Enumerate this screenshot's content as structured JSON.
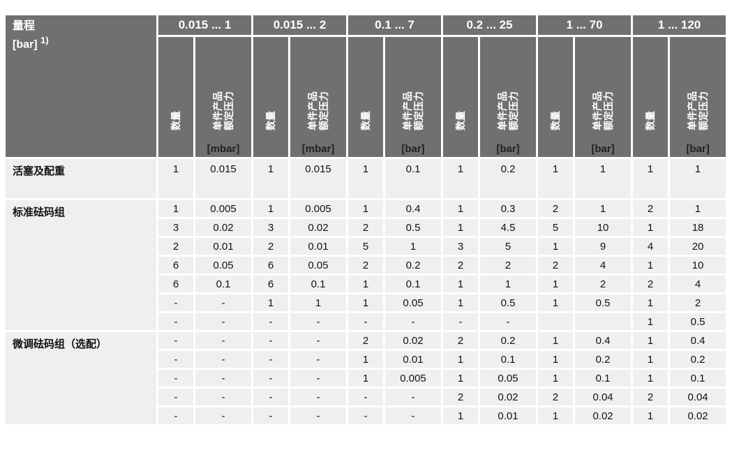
{
  "header": {
    "title": "量程",
    "unit": "[bar]",
    "footnote": "1)",
    "count_label": "数量",
    "value_label": "单件产品\n额定压力",
    "ranges": [
      {
        "label": "0.015 ... 1",
        "unit": "[mbar]"
      },
      {
        "label": "0.015 ... 2",
        "unit": "[mbar]"
      },
      {
        "label": "0.1 ... 7",
        "unit": "[bar]"
      },
      {
        "label": "0.2 ... 25",
        "unit": "[bar]"
      },
      {
        "label": "1 ... 70",
        "unit": "[bar]"
      },
      {
        "label": "1 ... 120",
        "unit": "[bar]"
      }
    ]
  },
  "groups": [
    {
      "label": "活塞及配重",
      "rows": [
        [
          "1",
          "0.015",
          "1",
          "0.015",
          "1",
          "0.1",
          "1",
          "0.2",
          "1",
          "1",
          "1",
          "1"
        ]
      ]
    },
    {
      "label": "标准砝码组",
      "rows": [
        [
          "1",
          "0.005",
          "1",
          "0.005",
          "1",
          "0.4",
          "1",
          "0.3",
          "2",
          "1",
          "2",
          "1"
        ],
        [
          "3",
          "0.02",
          "3",
          "0.02",
          "2",
          "0.5",
          "1",
          "4.5",
          "5",
          "10",
          "1",
          "18"
        ],
        [
          "2",
          "0.01",
          "2",
          "0.01",
          "5",
          "1",
          "3",
          "5",
          "1",
          "9",
          "4",
          "20"
        ],
        [
          "6",
          "0.05",
          "6",
          "0.05",
          "2",
          "0.2",
          "2",
          "2",
          "2",
          "4",
          "1",
          "10"
        ],
        [
          "6",
          "0.1",
          "6",
          "0.1",
          "1",
          "0.1",
          "1",
          "1",
          "1",
          "2",
          "2",
          "4"
        ],
        [
          "-",
          "-",
          "1",
          "1",
          "1",
          "0.05",
          "1",
          "0.5",
          "1",
          "0.5",
          "1",
          "2"
        ],
        [
          "-",
          "-",
          "-",
          "-",
          "-",
          "-",
          "-",
          "-",
          "",
          "",
          "1",
          "0.5"
        ]
      ]
    },
    {
      "label": "微调砝码组（选配）",
      "rows": [
        [
          "-",
          "-",
          "-",
          "-",
          "2",
          "0.02",
          "2",
          "0.2",
          "1",
          "0.4",
          "1",
          "0.4"
        ],
        [
          "-",
          "-",
          "-",
          "-",
          "1",
          "0.01",
          "1",
          "0.1",
          "1",
          "0.2",
          "1",
          "0.2"
        ],
        [
          "-",
          "-",
          "-",
          "-",
          "1",
          "0.005",
          "1",
          "0.05",
          "1",
          "0.1",
          "1",
          "0.1"
        ],
        [
          "-",
          "-",
          "-",
          "-",
          "-",
          "-",
          "2",
          "0.02",
          "2",
          "0.04",
          "2",
          "0.04"
        ],
        [
          "-",
          "-",
          "-",
          "-",
          "-",
          "-",
          "1",
          "0.01",
          "1",
          "0.02",
          "1",
          "0.02"
        ]
      ]
    }
  ]
}
